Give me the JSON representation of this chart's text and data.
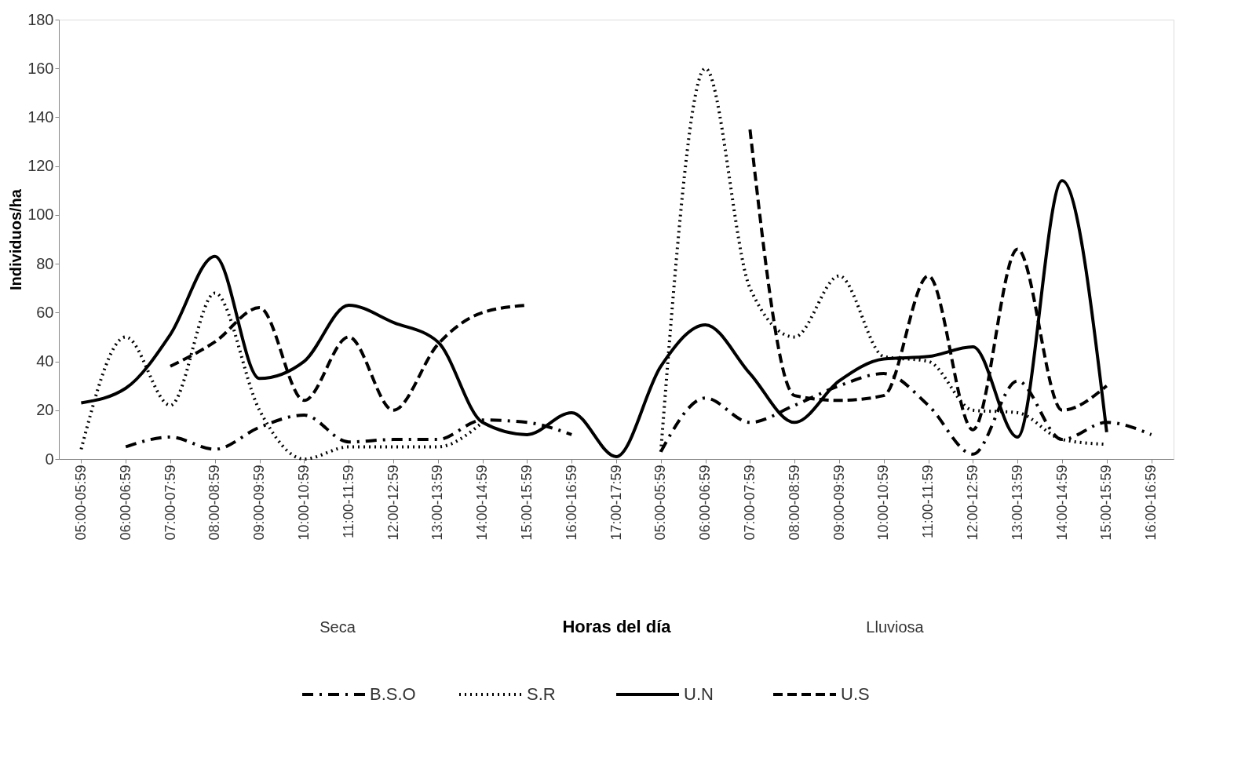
{
  "chart_data": {
    "type": "line",
    "xlabel": "Horas del día",
    "ylabel": "Individuos/ha",
    "categories": [
      "05:00-05:59",
      "06:00-06:59",
      "07:00-07:59",
      "08:00-08:59",
      "09:00-09:59",
      "10:00-10:59",
      "11:00-11:59",
      "12:00-12:59",
      "13:00-13:59",
      "14:00-14:59",
      "15:00-15:59",
      "16:00-16:59",
      "17:00-17:59",
      "05:00-05:59",
      "06:00-06:59",
      "07:00-07:59",
      "08:00-08:59",
      "09:00-09:59",
      "10:00-10:59",
      "11:00-11:59",
      "12:00-12:59",
      "13:00-13:59",
      "14:00-14:59",
      "15:00-15:59",
      "16:00-16:59"
    ],
    "annotations": [
      "Seca",
      "Lluviosa"
    ],
    "series": [
      {
        "name": "B.S.O",
        "color": "#000000",
        "line_style": "dashdot",
        "values": [
          null,
          5,
          9,
          4,
          13,
          18,
          7,
          8,
          8,
          16,
          15,
          10,
          null,
          3,
          25,
          15,
          22,
          30,
          35,
          22,
          2,
          32,
          8,
          15,
          10
        ]
      },
      {
        "name": "S.R",
        "color": "#000000",
        "line_style": "dotted",
        "values": [
          4,
          50,
          22,
          68,
          20,
          0,
          5,
          5,
          5,
          15,
          null,
          null,
          null,
          3,
          160,
          70,
          50,
          75,
          42,
          40,
          20,
          19,
          8,
          6,
          null
        ]
      },
      {
        "name": "U.N",
        "color": "#000000",
        "line_style": "solid",
        "values": [
          23,
          29,
          51,
          83,
          33,
          40,
          63,
          56,
          48,
          15,
          10,
          19,
          1,
          38,
          55,
          35,
          15,
          32,
          41,
          42,
          46,
          9,
          114,
          11,
          null
        ]
      },
      {
        "name": "U.S",
        "color": "#000000",
        "line_style": "dashed",
        "values": [
          null,
          null,
          38,
          48,
          62,
          24,
          50,
          20,
          47,
          60,
          63,
          null,
          null,
          null,
          null,
          135,
          26,
          24,
          26,
          75,
          12,
          86,
          20,
          30,
          null
        ]
      }
    ],
    "ylim": [
      0,
      180
    ],
    "yticks": [
      0,
      20,
      40,
      60,
      80,
      100,
      120,
      140,
      160,
      180
    ],
    "grid": false,
    "legend": "bottom",
    "marker": "none"
  }
}
